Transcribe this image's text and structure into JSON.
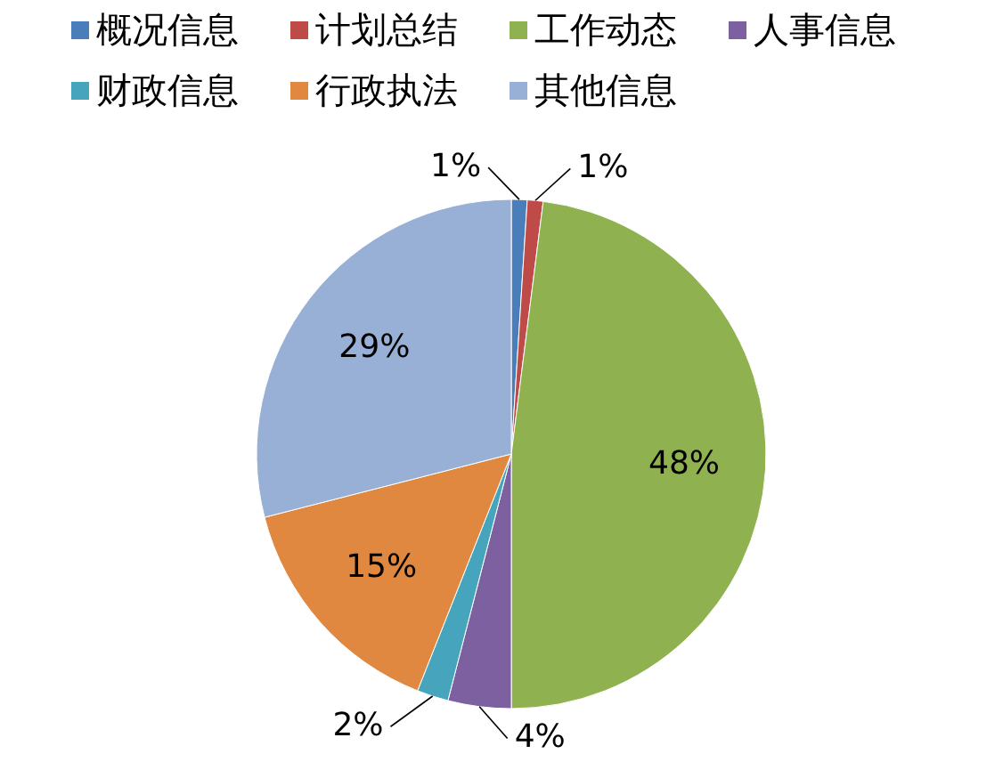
{
  "chart_data": {
    "type": "pie",
    "categories": [
      "概况信息",
      "计划总结",
      "工作动态",
      "人事信息",
      "财政信息",
      "行政执法",
      "其他信息"
    ],
    "values": [
      1,
      1,
      48,
      4,
      2,
      15,
      29
    ],
    "colors": [
      "#4a7ebb",
      "#be4b48",
      "#8fb150",
      "#7d60a0",
      "#46a5bd",
      "#e0883f",
      "#98afd6"
    ],
    "value_labels": [
      "1%",
      "1%",
      "48%",
      "4%",
      "2%",
      "15%",
      "29%"
    ],
    "legend": "top"
  }
}
